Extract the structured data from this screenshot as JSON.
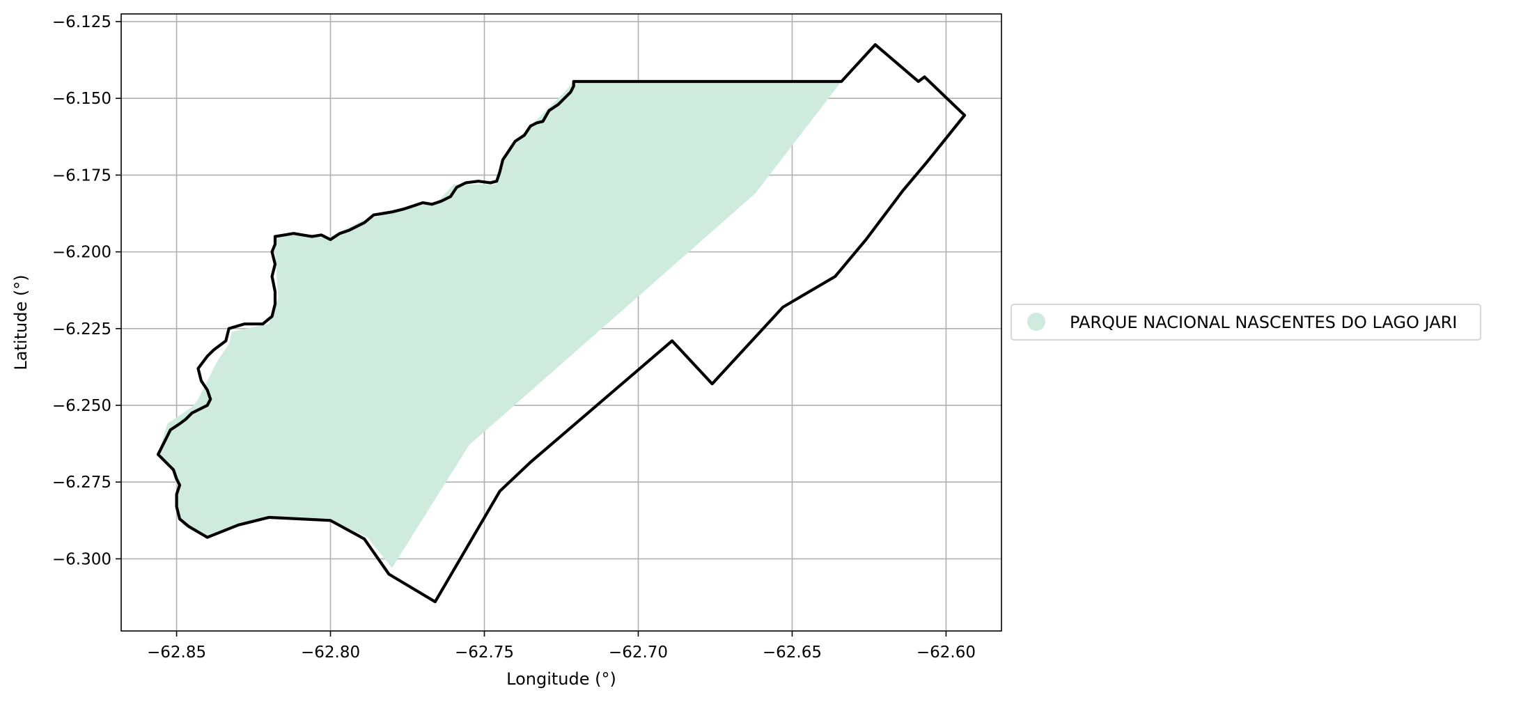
{
  "chart_data": {
    "type": "map",
    "xlabel": "Longitude (°)",
    "ylabel": "Latitude (°)",
    "xlim": [
      -62.868,
      -62.582
    ],
    "ylim": [
      -6.3235,
      -6.1225
    ],
    "xticks": [
      -62.85,
      -62.8,
      -62.75,
      -62.7,
      -62.65,
      -62.6
    ],
    "xtick_labels": [
      "−62.85",
      "−62.80",
      "−62.75",
      "−62.70",
      "−62.65",
      "−62.60"
    ],
    "yticks": [
      -6.125,
      -6.15,
      -6.175,
      -6.2,
      -6.225,
      -6.25,
      -6.275,
      -6.3
    ],
    "ytick_labels": [
      "−6.125",
      "−6.150",
      "−6.175",
      "−6.200",
      "−6.225",
      "−6.250",
      "−6.275",
      "−6.300"
    ],
    "grid": true,
    "legend_position": "right",
    "legend": [
      {
        "label": "PARQUE NACIONAL NASCENTES DO LAGO JARI",
        "color": "#cfebdd"
      }
    ],
    "fill_color": "#cfebdd",
    "boundary_color": "#000000",
    "park_area": [
      [
        -62.721,
        -6.1445
      ],
      [
        -62.634,
        -6.1445
      ],
      [
        -62.662,
        -6.181
      ],
      [
        -62.755,
        -6.263
      ],
      [
        -62.78,
        -6.303
      ],
      [
        -62.788,
        -6.293
      ],
      [
        -62.8,
        -6.2875
      ],
      [
        -62.82,
        -6.2865
      ],
      [
        -62.83,
        -6.289
      ],
      [
        -62.84,
        -6.293
      ],
      [
        -62.848,
        -6.289
      ],
      [
        -62.85,
        -6.284
      ],
      [
        -62.85,
        -6.276
      ],
      [
        -62.852,
        -6.27
      ],
      [
        -62.856,
        -6.266
      ],
      [
        -62.853,
        -6.256
      ],
      [
        -62.845,
        -6.2505
      ],
      [
        -62.843,
        -6.248
      ],
      [
        -62.84,
        -6.242
      ],
      [
        -62.837,
        -6.236
      ],
      [
        -62.833,
        -6.23
      ],
      [
        -62.832,
        -6.226
      ],
      [
        -62.82,
        -6.2235
      ],
      [
        -62.817,
        -6.215
      ],
      [
        -62.818,
        -6.2
      ],
      [
        -62.818,
        -6.195
      ],
      [
        -62.81,
        -6.1945
      ],
      [
        -62.801,
        -6.1955
      ],
      [
        -62.798,
        -6.194
      ],
      [
        -62.79,
        -6.19
      ],
      [
        -62.783,
        -6.188
      ],
      [
        -62.775,
        -6.186
      ],
      [
        -62.765,
        -6.1835
      ],
      [
        -62.76,
        -6.178
      ],
      [
        -62.746,
        -6.178
      ],
      [
        -62.744,
        -6.169
      ],
      [
        -62.738,
        -6.162
      ],
      [
        -62.733,
        -6.157
      ],
      [
        -62.728,
        -6.152
      ],
      [
        -62.724,
        -6.148
      ]
    ],
    "boundary": [
      [
        -62.721,
        -6.1445
      ],
      [
        -62.634,
        -6.1445
      ],
      [
        -62.623,
        -6.1325
      ],
      [
        -62.609,
        -6.1445
      ],
      [
        -62.607,
        -6.143
      ],
      [
        -62.594,
        -6.1555
      ],
      [
        -62.606,
        -6.1705
      ],
      [
        -62.614,
        -6.18
      ],
      [
        -62.62,
        -6.188
      ],
      [
        -62.626,
        -6.196
      ],
      [
        -62.636,
        -6.208
      ],
      [
        -62.653,
        -6.218
      ],
      [
        -62.676,
        -6.243
      ],
      [
        -62.689,
        -6.229
      ],
      [
        -62.735,
        -6.2685
      ],
      [
        -62.745,
        -6.278
      ],
      [
        -62.766,
        -6.314
      ],
      [
        -62.781,
        -6.305
      ],
      [
        -62.789,
        -6.2935
      ],
      [
        -62.8,
        -6.2875
      ],
      [
        -62.82,
        -6.2865
      ],
      [
        -62.83,
        -6.289
      ],
      [
        -62.84,
        -6.293
      ],
      [
        -62.846,
        -6.2895
      ],
      [
        -62.849,
        -6.287
      ],
      [
        -62.85,
        -6.283
      ],
      [
        -62.85,
        -6.279
      ],
      [
        -62.849,
        -6.276
      ],
      [
        -62.85,
        -6.274
      ],
      [
        -62.851,
        -6.271
      ],
      [
        -62.853,
        -6.269
      ],
      [
        -62.856,
        -6.266
      ],
      [
        -62.854,
        -6.262
      ],
      [
        -62.852,
        -6.258
      ],
      [
        -62.849,
        -6.256
      ],
      [
        -62.847,
        -6.2545
      ],
      [
        -62.845,
        -6.2525
      ],
      [
        -62.843,
        -6.2515
      ],
      [
        -62.84,
        -6.25
      ],
      [
        -62.839,
        -6.248
      ],
      [
        -62.84,
        -6.245
      ],
      [
        -62.842,
        -6.242
      ],
      [
        -62.843,
        -6.238
      ],
      [
        -62.84,
        -6.234
      ],
      [
        -62.838,
        -6.232
      ],
      [
        -62.836,
        -6.2305
      ],
      [
        -62.834,
        -6.229
      ],
      [
        -62.833,
        -6.225
      ],
      [
        -62.828,
        -6.2235
      ],
      [
        -62.822,
        -6.2235
      ],
      [
        -62.819,
        -6.221
      ],
      [
        -62.818,
        -6.217
      ],
      [
        -62.818,
        -6.213
      ],
      [
        -62.819,
        -6.208
      ],
      [
        -62.818,
        -6.204
      ],
      [
        -62.819,
        -6.2
      ],
      [
        -62.818,
        -6.1975
      ],
      [
        -62.818,
        -6.195
      ],
      [
        -62.815,
        -6.1945
      ],
      [
        -62.812,
        -6.194
      ],
      [
        -62.809,
        -6.1945
      ],
      [
        -62.806,
        -6.195
      ],
      [
        -62.803,
        -6.1945
      ],
      [
        -62.8,
        -6.196
      ],
      [
        -62.797,
        -6.194
      ],
      [
        -62.794,
        -6.193
      ],
      [
        -62.791,
        -6.1915
      ],
      [
        -62.789,
        -6.1905
      ],
      [
        -62.786,
        -6.188
      ],
      [
        -62.783,
        -6.1875
      ],
      [
        -62.78,
        -6.187
      ],
      [
        -62.776,
        -6.186
      ],
      [
        -62.773,
        -6.185
      ],
      [
        -62.77,
        -6.184
      ],
      [
        -62.767,
        -6.1845
      ],
      [
        -62.764,
        -6.1835
      ],
      [
        -62.761,
        -6.182
      ],
      [
        -62.759,
        -6.179
      ],
      [
        -62.756,
        -6.1775
      ],
      [
        -62.752,
        -6.177
      ],
      [
        -62.748,
        -6.1775
      ],
      [
        -62.746,
        -6.177
      ],
      [
        -62.745,
        -6.174
      ],
      [
        -62.744,
        -6.17
      ],
      [
        -62.742,
        -6.167
      ],
      [
        -62.74,
        -6.164
      ],
      [
        -62.737,
        -6.162
      ],
      [
        -62.735,
        -6.159
      ],
      [
        -62.733,
        -6.158
      ],
      [
        -62.731,
        -6.1575
      ],
      [
        -62.729,
        -6.154
      ],
      [
        -62.726,
        -6.152
      ],
      [
        -62.724,
        -6.15
      ],
      [
        -62.722,
        -6.148
      ],
      [
        -62.721,
        -6.146
      ]
    ]
  }
}
